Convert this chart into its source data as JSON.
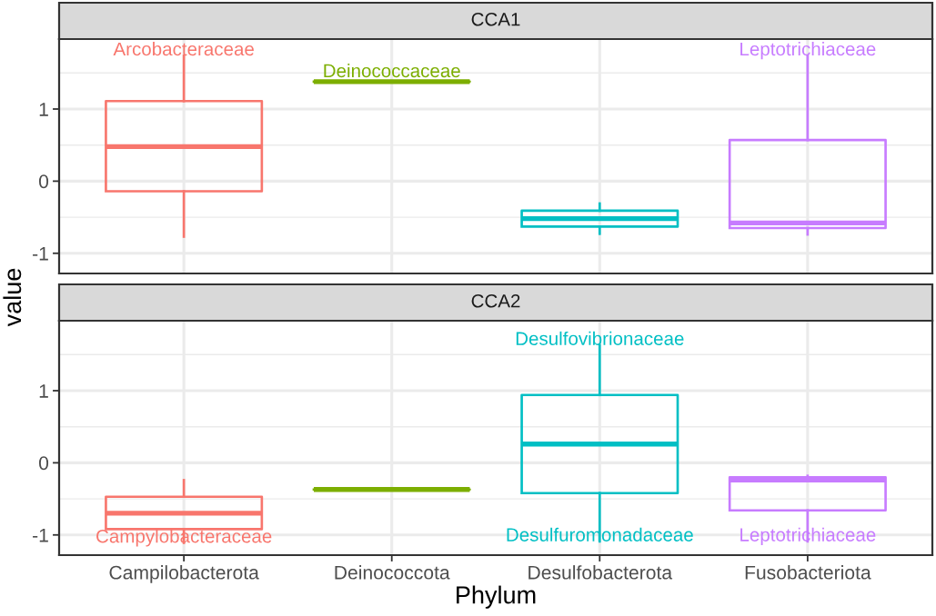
{
  "chart_data": [
    {
      "type": "box",
      "title": "CCA1",
      "ylabel": "value",
      "categories": [
        "Campilobacterota",
        "Deinococcota",
        "Desulfobacterota",
        "Fusobacteriota"
      ],
      "boxes": [
        {
          "low": -0.77,
          "q1": -0.14,
          "median": 0.48,
          "q3": 1.11,
          "high": 1.74
        },
        {
          "low": 1.38,
          "q1": 1.38,
          "median": 1.38,
          "q3": 1.38,
          "high": 1.38
        },
        {
          "low": -0.73,
          "q1": -0.63,
          "median": -0.52,
          "q3": -0.41,
          "high": -0.31
        },
        {
          "low": -0.74,
          "q1": -0.65,
          "median": -0.58,
          "q3": 0.57,
          "high": 1.74
        }
      ],
      "colors": [
        "#f8766d",
        "#7cae00",
        "#00bfc4",
        "#c77cff"
      ],
      "ylim": [
        -1.28,
        1.97
      ],
      "yticks": [
        -1,
        0,
        1
      ],
      "grid": true,
      "tick_labels": "y",
      "annotations": [
        {
          "text": "Arcobacteraceae",
          "x": "Campilobacterota",
          "y": 1.74
        },
        {
          "text": "Deinococcaceae",
          "x": "Deinococcota",
          "y": 1.38
        },
        {
          "text": "Leptotrichiaceae",
          "x": "Fusobacteriota",
          "y": 1.74
        }
      ]
    },
    {
      "type": "box",
      "title": "CCA2",
      "xlabel": "Phylum",
      "categories": [
        "Campilobacterota",
        "Deinococcota",
        "Desulfobacterota",
        "Fusobacteriota"
      ],
      "boxes": [
        {
          "low": -1.11,
          "q1": -0.92,
          "median": -0.7,
          "q3": -0.47,
          "high": -0.24
        },
        {
          "low": -0.37,
          "q1": -0.37,
          "median": -0.37,
          "q3": -0.37,
          "high": -0.37
        },
        {
          "low": -1.09,
          "q1": -0.42,
          "median": 0.26,
          "q3": 0.94,
          "high": 1.63
        },
        {
          "low": -1.09,
          "q1": -0.66,
          "median": -0.24,
          "q3": -0.2,
          "high": -0.18
        }
      ],
      "colors": [
        "#f8766d",
        "#7cae00",
        "#00bfc4",
        "#c77cff"
      ],
      "ylim": [
        -1.28,
        1.97
      ],
      "yticks": [
        -1,
        0,
        1
      ],
      "grid": true,
      "annotations": [
        {
          "text": "Campylobacteraceae",
          "x": "Campilobacterota",
          "y": -1.11
        },
        {
          "text": "Desulfovibrionaceae",
          "x": "Desulfobacterota",
          "y": 1.63
        },
        {
          "text": "Desulfuromonadaceae",
          "x": "Desulfobacterota",
          "y": -1.09
        },
        {
          "text": "Leptotrichiaceae",
          "x": "Fusobacteriota",
          "y": -1.09
        }
      ]
    }
  ]
}
